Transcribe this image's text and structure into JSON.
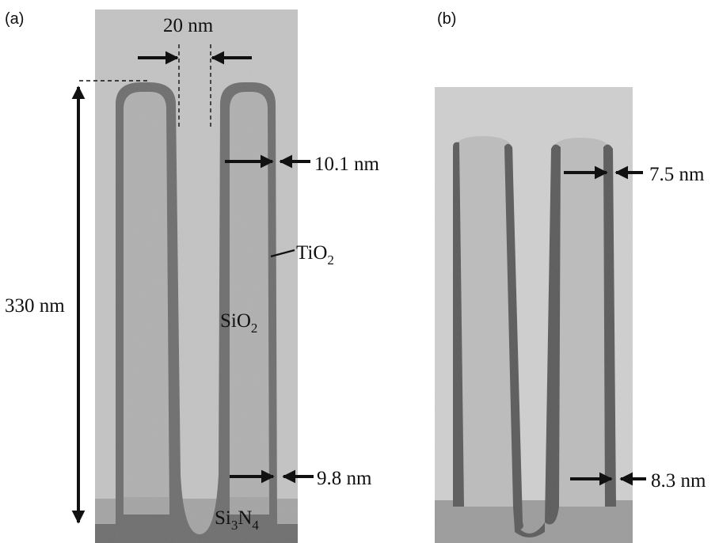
{
  "panels": {
    "a": {
      "label": "(a)",
      "annotations": {
        "gap_width": "20 nm",
        "height": "330 nm",
        "top_thickness": "10.1 nm",
        "bottom_thickness": "9.8 nm",
        "tio2_base": "TiO",
        "tio2_sub": "2",
        "sio2_base": "SiO",
        "sio2_sub": "2",
        "si3n4_part1": "Si",
        "si3n4_sub1": "3",
        "si3n4_part2": "N",
        "si3n4_sub2": "4"
      }
    },
    "b": {
      "label": "(b)",
      "annotations": {
        "top_thickness": "7.5 nm",
        "bottom_thickness": "8.3 nm"
      }
    }
  },
  "colors": {
    "background_a": "#c3c3c3",
    "fin_fill_a": "#b0b0b0",
    "tio2_layer": "#6f6f6f",
    "nitride_a": "#a4a4a4",
    "background_b": "#cfcfcf",
    "fin_fill_b": "#bcbcbc",
    "tio2_layer_b": "#5c5c5c",
    "nitride_b": "#9c9c9c",
    "arrow": "#111111"
  }
}
